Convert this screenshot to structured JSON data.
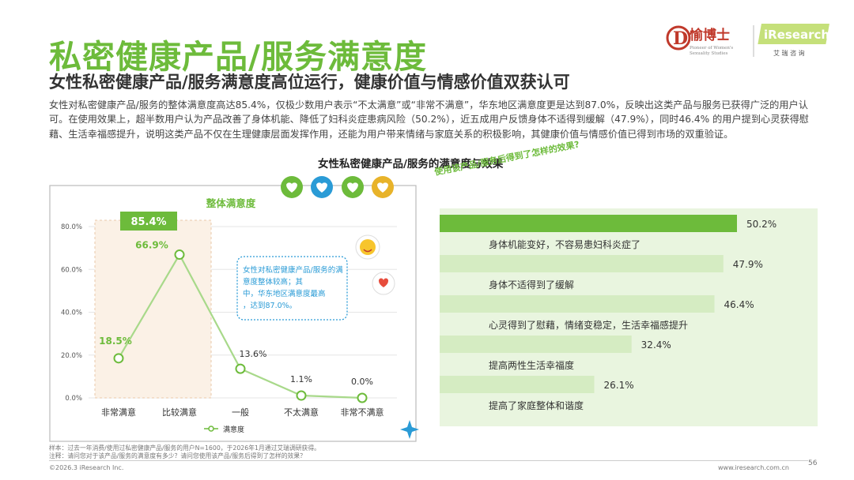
{
  "header": {
    "title": "私密健康产品/服务满意度",
    "subtitle": "女性私密健康产品/服务满意度高位运行，健康价值与情感价值双获认可",
    "paragraph": "女性对私密健康产品/服务的整体满意度高达85.4%，仅极少数用户表示“不太满意”或“非常不满意”，华东地区满意度更是达到87.0%，反映出这类产品与服务已获得广泛的用户认可。在使用效果上，超半数用户认为产品改善了身体机能、降低了妇科炎症患病风险（50.2%），近五成用户反馈身体不适得到缓解（47.9%），同时46.4% 的用户提到心灵获得慰藉、生活幸福感提升，说明这类产品不仅在生理健康层面发挥作用，还能为用户带来情绪与家庭关系的积极影响，其健康价值与情感价值已得到市场的双重验证。"
  },
  "logo": {
    "brand_cn": "愉博士",
    "brand_tagline_1": "Pioneer of Women's",
    "brand_tagline_2": "Sexuality Studies",
    "ir_name": "iResearch",
    "ir_cn": "艾 瑞 咨 询",
    "colors": {
      "dr_red": "#c0392b",
      "ir_green": "#6dbb3b"
    }
  },
  "chart_section_title": "女性私密健康产品/服务的满意度与效果",
  "colors": {
    "accent_green": "#6dbb3b",
    "light_green": "#d5ecc2",
    "bar_green": "#6dbb3b",
    "callout_blue": "#2a9bd6"
  },
  "chart_data": [
    {
      "type": "line",
      "title": "整体满意度",
      "categories": [
        "非常满意",
        "比较满意",
        "一般",
        "不太满意",
        "非常不满意"
      ],
      "series": [
        {
          "name": "满意度",
          "values": [
            18.5,
            66.9,
            13.6,
            1.1,
            0.0
          ]
        }
      ],
      "value_labels": [
        "18.5%",
        "66.9%",
        "13.6%",
        "1.1%",
        "0.0%"
      ],
      "y_ticks": [
        "0.0%",
        "20.0%",
        "40.0%",
        "60.0%",
        "80.0%"
      ],
      "ylim": [
        0,
        80
      ],
      "highlight": {
        "categories": [
          "非常满意",
          "比较满意"
        ],
        "label": "85.4%"
      },
      "legend": "bottom",
      "callout": "女性对私密健康产品/服务的满意度整体较高；其中，华东地区满意度最高，达到87.0%。"
    },
    {
      "type": "bar",
      "orientation": "horizontal",
      "question": "使用该产品/服务后得到了怎样的效果?",
      "categories": [
        "身体机能变好，不容易患妇科炎症了",
        "身体不适得到了缓解",
        "心灵得到了慰藉，情绪变稳定，生活幸福感提升",
        "提高两性生活幸福度",
        "提高了家庭整体和谐度"
      ],
      "values": [
        50.2,
        47.9,
        46.4,
        32.4,
        26.1
      ],
      "value_labels": [
        "50.2%",
        "47.9%",
        "46.4%",
        "32.4%",
        "26.1%"
      ],
      "xlim": [
        0,
        60
      ]
    }
  ],
  "footnotes": {
    "sample": "样本：过去一年消费/使用过私密健康产品/服务的用户N=1600，于2026年1月通过艾瑞调研获得。",
    "note": "注释：请问您对于该产品/服务的满意度有多少？请问您使用该产品/服务后得到了怎样的效果？"
  },
  "footer": {
    "copyright": "©2026.3 iResearch Inc.",
    "site": "www.iresearch.com.cn",
    "page": "56"
  }
}
